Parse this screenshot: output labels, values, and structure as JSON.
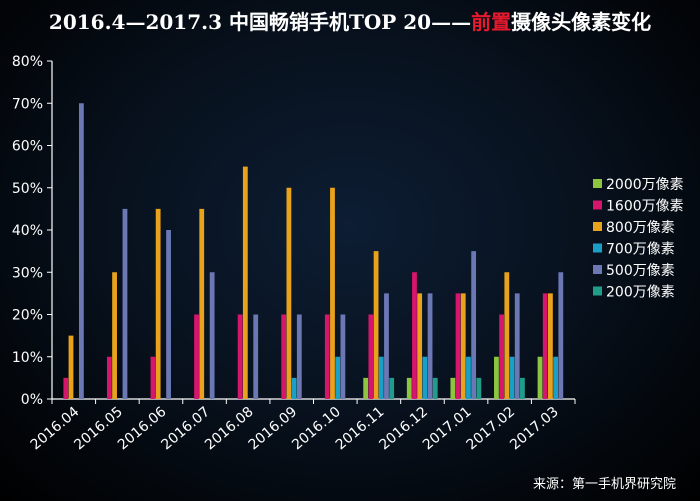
{
  "chart_data": {
    "type": "bar",
    "title": {
      "prefix": "2016.4—2017.3 中国畅销手机TOP 20——",
      "highlight": "前置",
      "suffix": "摄像头像素变化"
    },
    "categories": [
      "2016.04",
      "2016.05",
      "2016.06",
      "2016.07",
      "2016.08",
      "2016.09",
      "2016.10",
      "2016.11",
      "2016.12",
      "2017.01",
      "2017.02",
      "2017.03"
    ],
    "series": [
      {
        "name": "2000万像素",
        "color": "#8cc63f",
        "values": [
          0,
          0,
          0,
          0,
          0,
          0,
          0,
          5,
          5,
          5,
          10,
          10
        ]
      },
      {
        "name": "1600万像素",
        "color": "#d6156c",
        "values": [
          5,
          10,
          10,
          20,
          20,
          20,
          20,
          20,
          30,
          25,
          20,
          25
        ]
      },
      {
        "name": "800万像素",
        "color": "#e9a21b",
        "values": [
          15,
          30,
          45,
          45,
          55,
          50,
          50,
          35,
          25,
          25,
          30,
          25
        ]
      },
      {
        "name": "700万像素",
        "color": "#1a9fc7",
        "values": [
          0,
          0,
          0,
          0,
          0,
          5,
          10,
          10,
          10,
          10,
          10,
          10
        ]
      },
      {
        "name": "500万像素",
        "color": "#6b78b4",
        "values": [
          70,
          45,
          40,
          30,
          20,
          20,
          20,
          25,
          25,
          35,
          25,
          30
        ]
      },
      {
        "name": "200万像素",
        "color": "#1f9d8a",
        "values": [
          0,
          0,
          0,
          0,
          0,
          0,
          0,
          5,
          5,
          5,
          5,
          0
        ]
      }
    ],
    "y_ticks": [
      "0%",
      "10%",
      "20%",
      "30%",
      "40%",
      "50%",
      "60%",
      "70%",
      "80%"
    ],
    "ylim": [
      0,
      80
    ],
    "grid": false,
    "legend_position": "right"
  },
  "source_text": "来源：第一手机界研究院"
}
